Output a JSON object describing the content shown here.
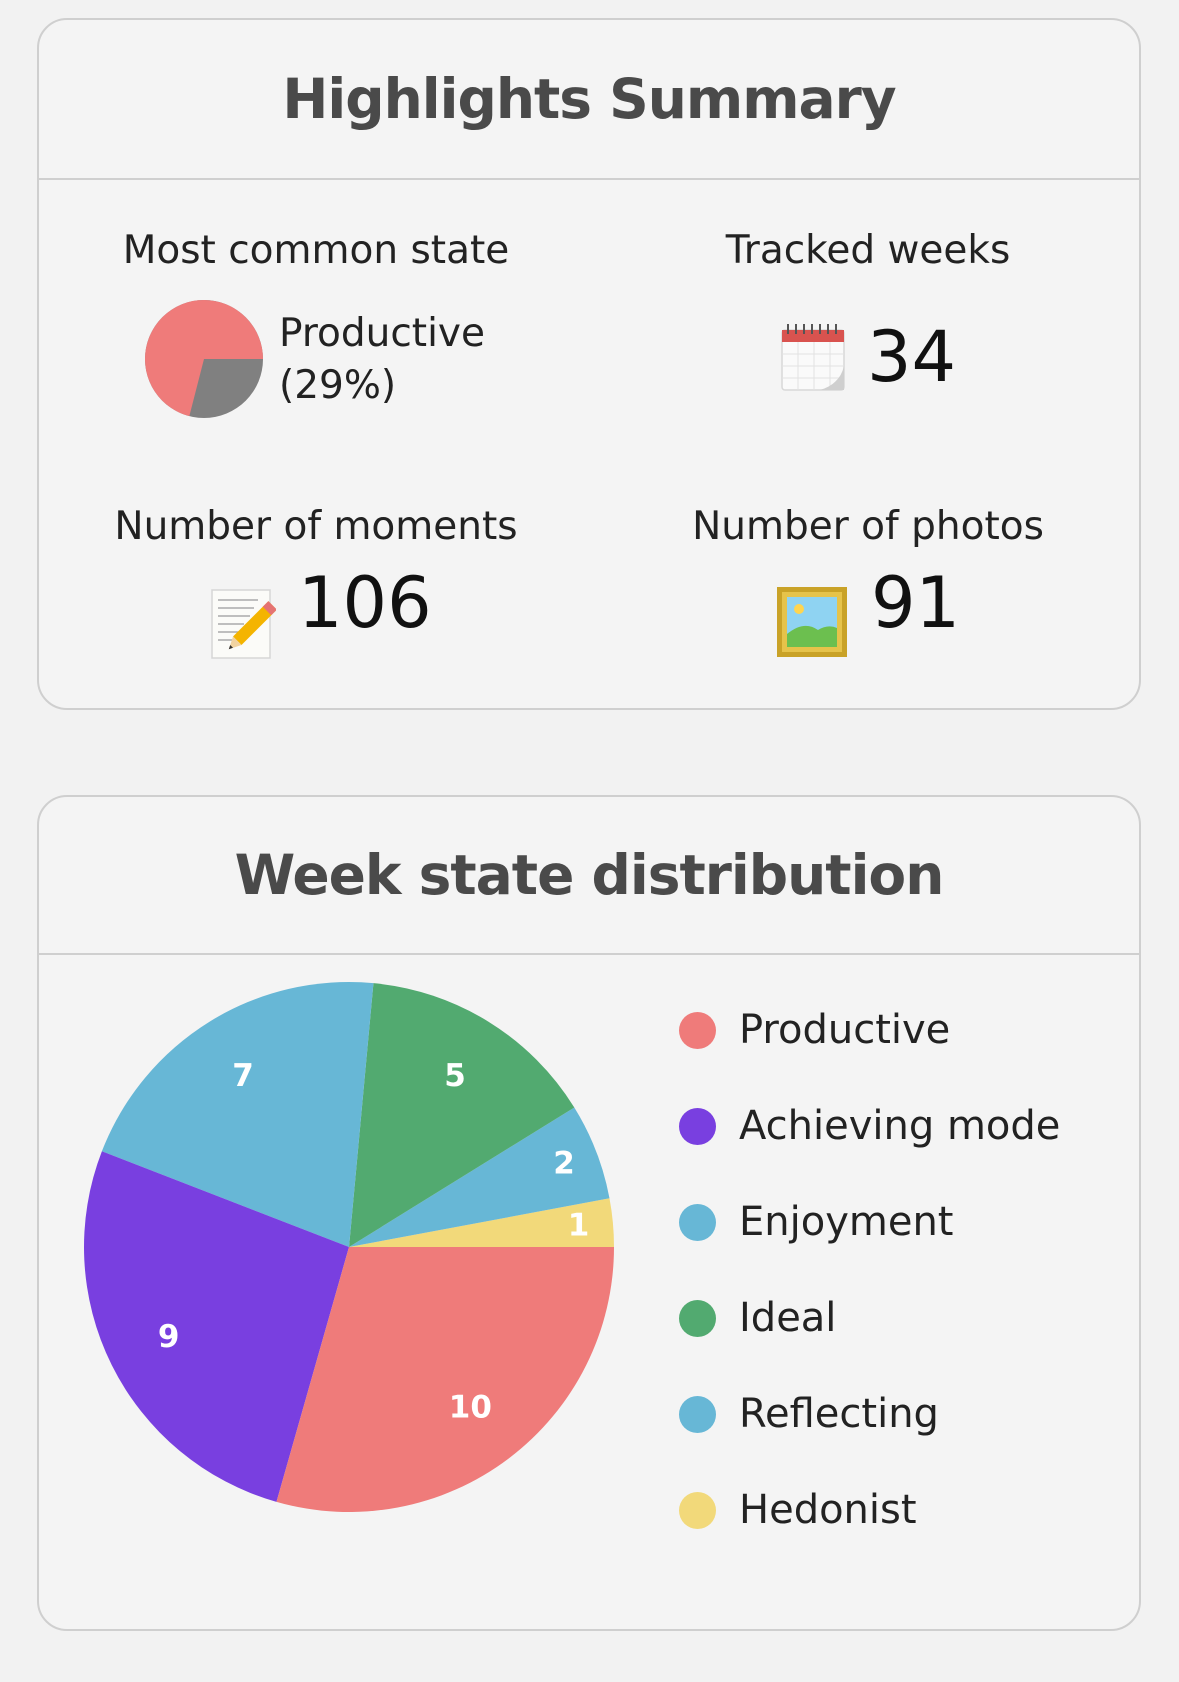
{
  "highlights": {
    "title": "Highlights Summary",
    "most_common_label": "Most common state",
    "most_common_value": "Productive(29%)",
    "most_common_fraction": 0.29,
    "tracked_weeks_label": "Tracked weeks",
    "tracked_weeks_value": "34",
    "moments_label": "Number of moments",
    "moments_value": "106",
    "photos_label": "Number of photos",
    "photos_value": "91",
    "icons": [
      "calendar-icon",
      "memo-icon",
      "framed-picture-icon"
    ]
  },
  "distribution": {
    "title": "Week state distribution"
  },
  "chart_data": {
    "type": "pie",
    "title": "Week state distribution",
    "legend_position": "right",
    "slices": [
      {
        "label": "Hedonist",
        "value": 1,
        "color": "#f2d97a"
      },
      {
        "label": "Reflecting",
        "value": 2,
        "color": "#67b7d6"
      },
      {
        "label": "Ideal",
        "value": 5,
        "color": "#52aa70"
      },
      {
        "label": "Enjoyment",
        "value": 7,
        "color": "#67b7d6"
      },
      {
        "label": "Achieving mode",
        "value": 9,
        "color": "#793fe0"
      },
      {
        "label": "Productive",
        "value": 10,
        "color": "#ef7b7a"
      }
    ],
    "legend": [
      {
        "label": "Productive",
        "color": "#ef7b7a"
      },
      {
        "label": "Achieving mode",
        "color": "#793fe0"
      },
      {
        "label": "Enjoyment",
        "color": "#67b7d6"
      },
      {
        "label": "Ideal",
        "color": "#52aa70"
      },
      {
        "label": "Reflecting",
        "color": "#67b7d6"
      },
      {
        "label": "Hedonist",
        "color": "#f2d97a"
      }
    ]
  }
}
